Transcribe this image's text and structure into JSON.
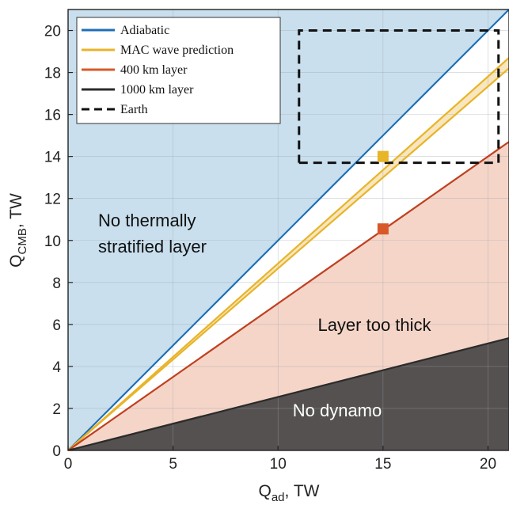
{
  "chart_data": {
    "type": "line",
    "title": "",
    "xlabel": {
      "main": "Q",
      "sub": "ad",
      "suffix": ", TW"
    },
    "ylabel": {
      "main": "Q",
      "sub": "CMB",
      "suffix": ", TW"
    },
    "xlim": [
      0,
      21
    ],
    "ylim": [
      0,
      21
    ],
    "xticks": [
      0,
      5,
      10,
      15,
      20
    ],
    "yticks": [
      0,
      2,
      4,
      6,
      8,
      10,
      12,
      14,
      16,
      18,
      20
    ],
    "grid": true,
    "legend_position": "top-left",
    "series": [
      {
        "name": "Adiabatic",
        "style": "solid",
        "color": "#1f6fb5",
        "x": [
          0,
          21
        ],
        "y": [
          0,
          21
        ]
      },
      {
        "name": "MAC wave prediction",
        "style": "solid",
        "color": "#e8b428",
        "x": [
          0,
          21
        ],
        "y": [
          0,
          18.7
        ]
      },
      {
        "name": "MAC wave prediction (lower)",
        "style": "solid",
        "color": "#e8b428",
        "x": [
          0,
          21
        ],
        "y": [
          0,
          18.2
        ]
      },
      {
        "name": "400 km layer",
        "style": "solid",
        "color": "#c0401f",
        "x": [
          0,
          21
        ],
        "y": [
          0,
          14.7
        ]
      },
      {
        "name": "1000 km layer",
        "style": "solid",
        "color": "#2b2b2b",
        "x": [
          0,
          21
        ],
        "y": [
          0,
          5.35
        ]
      },
      {
        "name": "Earth",
        "style": "dashed",
        "color": "#111111",
        "x": [
          11,
          20.5,
          20.5,
          11,
          11
        ],
        "y": [
          13.7,
          13.7,
          20,
          20,
          13.7
        ]
      }
    ],
    "markers": [
      {
        "x": 15,
        "y": 14,
        "color": "#e8b428"
      },
      {
        "x": 15,
        "y": 10.55,
        "color": "#d8582a"
      }
    ],
    "legend": [
      {
        "label": "Adiabatic",
        "color": "#1f6fb5",
        "style": "solid"
      },
      {
        "label": "MAC wave prediction",
        "color": "#e8b428",
        "style": "solid"
      },
      {
        "label": "400 km layer",
        "color": "#d8582a",
        "style": "solid"
      },
      {
        "label": "1000 km layer",
        "color": "#2b2b2b",
        "style": "solid"
      },
      {
        "label": "Earth",
        "color": "#111111",
        "style": "dashed"
      }
    ],
    "regions": [
      {
        "label_lines": [
          "No thermally",
          "stratified layer"
        ],
        "color": "#111111"
      },
      {
        "label_lines": [
          "Layer too thick"
        ],
        "color": "#111111"
      },
      {
        "label_lines": [
          "No dynamo"
        ],
        "color": "#ffffff"
      }
    ],
    "colors": {
      "background_blue": "#c9dfed",
      "band_yellow": "#f7e6c0",
      "pink": "#f5d5c8",
      "dark": "#555150"
    }
  }
}
